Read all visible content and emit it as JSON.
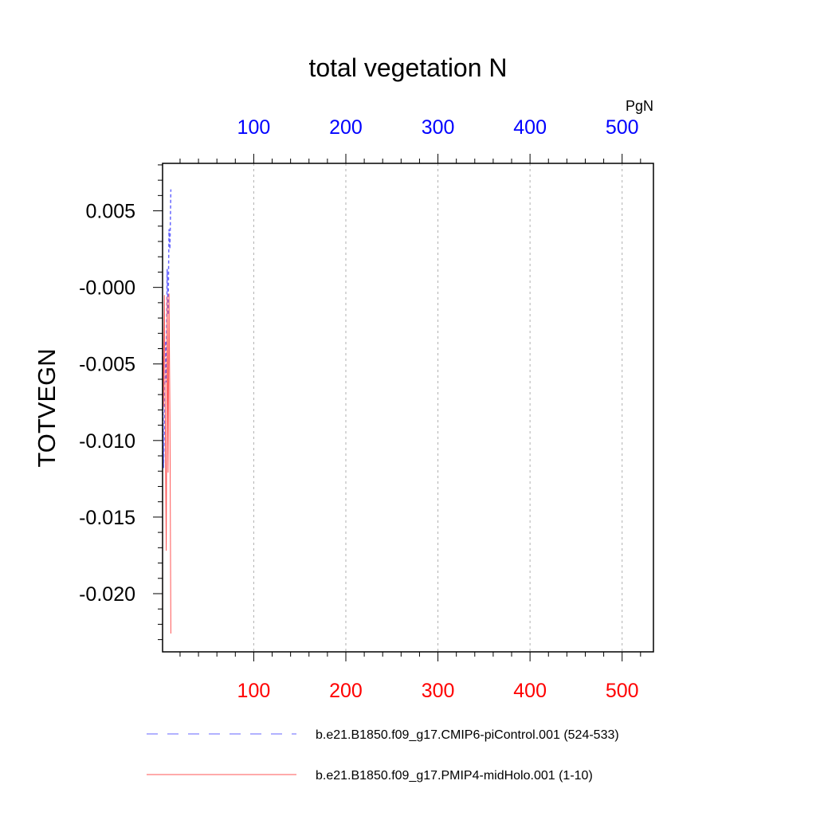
{
  "chart_data": {
    "type": "line",
    "title": "total vegetation N",
    "ylabel": "TOTVEGN",
    "units": "PgN",
    "ylim": [
      -0.0238,
      0.0081
    ],
    "yticks": [
      0.005,
      0.0,
      -0.005,
      -0.01,
      -0.015,
      -0.02
    ],
    "ytick_labels": [
      "0.005",
      "-0.000",
      "-0.005",
      "-0.010",
      "-0.015",
      "-0.020"
    ],
    "grid": "vertical dashed at major x ticks",
    "x_top": {
      "color": "#0000ff",
      "xlim": [
        1,
        534
      ],
      "ticks": [
        100,
        200,
        300,
        400,
        500
      ],
      "tick_labels": [
        "100",
        "200",
        "300",
        "400",
        "500"
      ]
    },
    "x_bottom": {
      "color": "#ff0000",
      "xlim": [
        1,
        534
      ],
      "ticks": [
        100,
        200,
        300,
        400,
        500
      ],
      "tick_labels": [
        "100",
        "200",
        "300",
        "400",
        "500"
      ]
    },
    "series": [
      {
        "name": "b.e21.B1850.f09_g17.CMIP6-piControl.001 (524-533)",
        "color": "#6666ff",
        "style": "dashed",
        "axis": "top",
        "x": [
          1,
          2,
          3,
          4,
          5,
          6,
          7,
          8,
          9,
          10
        ],
        "y": [
          -0.0045,
          -0.0118,
          -0.0092,
          -0.0035,
          -0.0062,
          0.0012,
          -0.0018,
          0.0038,
          0.0025,
          0.0064
        ]
      },
      {
        "name": "b.e21.B1850.f09_g17.PMIP4-midHolo.001 (1-10)",
        "color": "#ff5555",
        "style": "solid",
        "axis": "bottom",
        "x": [
          1,
          2,
          3,
          4,
          5,
          6,
          7,
          8,
          9,
          10
        ],
        "y": [
          -0.0021,
          -0.0078,
          -0.0005,
          -0.0092,
          -0.0172,
          -0.0006,
          -0.0121,
          -0.0004,
          -0.0085,
          -0.0226
        ]
      }
    ],
    "legend_position": "bottom"
  }
}
